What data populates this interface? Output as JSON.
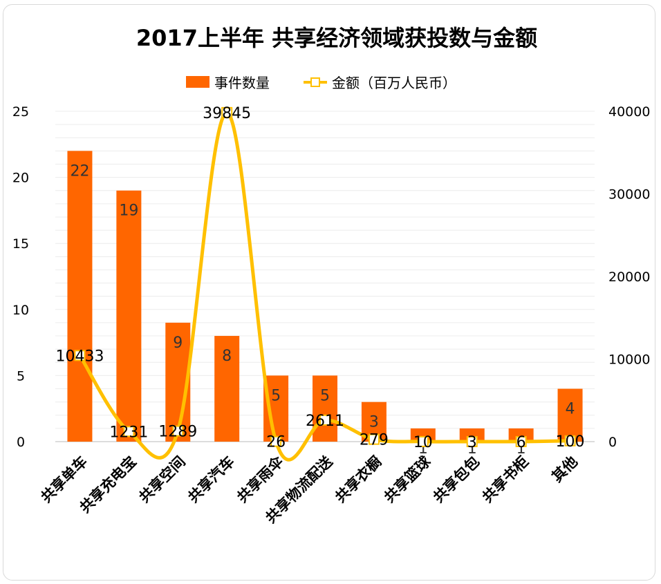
{
  "chart_data": {
    "type": "bar",
    "title": "2017上半年 共享经济领域获投数与金额",
    "categories": [
      "共享单车",
      "共享充电宝",
      "共享空间",
      "共享汽车",
      "共享雨伞",
      "共享物流配送",
      "共享衣橱",
      "共享篮球",
      "共享包包",
      "共享书柜",
      "其他"
    ],
    "series": [
      {
        "name": "事件数量",
        "type": "bar",
        "axis": "left",
        "color": "#FF6600",
        "values": [
          22,
          19,
          9,
          8,
          5,
          5,
          3,
          1,
          1,
          1,
          4
        ]
      },
      {
        "name": "金额（百万人民币）",
        "type": "line",
        "axis": "right",
        "color": "#FFC000",
        "values": [
          10433,
          1231,
          1289,
          39845,
          26,
          2611,
          279,
          10,
          3,
          6,
          100
        ]
      }
    ],
    "left_axis": {
      "ylim": [
        0,
        25
      ],
      "ticks": [
        "0",
        "5",
        "10",
        "15",
        "20",
        "25"
      ]
    },
    "right_axis": {
      "ylim": [
        0,
        40000
      ],
      "ticks": [
        "0",
        "10000",
        "20000",
        "30000",
        "40000"
      ]
    },
    "legend_position": "top",
    "grid": true
  }
}
